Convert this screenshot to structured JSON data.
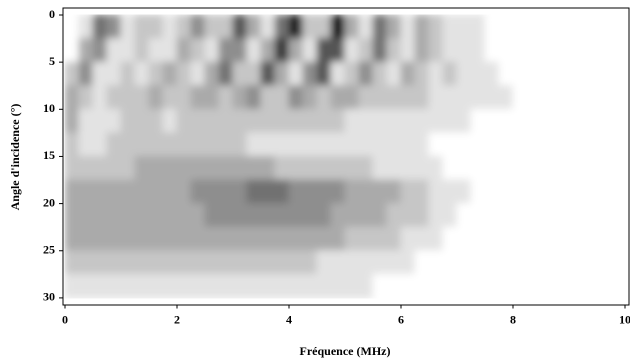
{
  "chart_data": {
    "type": "heatmap",
    "xlabel": "Fréquence (MHz)",
    "ylabel": "Angle d'incidence (°)",
    "xlim": [
      0,
      10
    ],
    "ylim": [
      30.7,
      -0.7
    ],
    "xticks": [
      0,
      2,
      4,
      6,
      8,
      10
    ],
    "yticks": [
      0,
      5,
      10,
      15,
      20,
      25,
      30
    ],
    "zlim": [
      0,
      9
    ],
    "colors": [
      "#ffffff",
      "#000000"
    ],
    "x": [
      0.125,
      0.375,
      0.625,
      0.875,
      1.125,
      1.375,
      1.625,
      1.875,
      2.125,
      2.375,
      2.625,
      2.875,
      3.125,
      3.375,
      3.625,
      3.875,
      4.125,
      4.375,
      4.625,
      4.875,
      5.125,
      5.375,
      5.625,
      5.875,
      6.125,
      6.375,
      6.625,
      6.875,
      7.125,
      7.375,
      7.625,
      7.875,
      8.125,
      8.375,
      8.625,
      8.875,
      9.125,
      9.375,
      9.625,
      9.875
    ],
    "y": [
      1.25,
      3.75,
      6.25,
      8.75,
      11.25,
      13.75,
      16.25,
      18.75,
      21.25,
      23.75,
      26.25,
      28.75
    ],
    "z": [
      [
        0,
        1,
        5,
        4,
        1,
        2,
        2,
        1,
        2,
        4,
        2,
        2,
        6,
        3,
        1,
        5,
        8,
        2,
        2,
        9,
        3,
        1,
        5,
        3,
        1,
        3,
        2,
        1,
        1,
        1,
        0,
        0,
        0,
        0,
        0,
        0,
        0,
        0,
        0,
        0
      ],
      [
        0,
        3,
        4,
        1,
        1,
        2,
        1,
        1,
        3,
        2,
        1,
        4,
        4,
        1,
        3,
        7,
        3,
        1,
        6,
        6,
        1,
        2,
        5,
        2,
        1,
        3,
        2,
        1,
        1,
        1,
        0,
        0,
        0,
        0,
        0,
        0,
        0,
        0,
        0,
        0
      ],
      [
        2,
        4,
        1,
        1,
        2,
        1,
        2,
        3,
        2,
        1,
        3,
        5,
        2,
        2,
        6,
        3,
        1,
        4,
        6,
        1,
        2,
        4,
        2,
        1,
        3,
        2,
        1,
        2,
        1,
        1,
        1,
        0,
        0,
        0,
        0,
        0,
        0,
        0,
        0,
        0
      ],
      [
        3,
        2,
        1,
        2,
        2,
        2,
        3,
        2,
        2,
        3,
        3,
        2,
        3,
        4,
        2,
        2,
        4,
        3,
        2,
        3,
        3,
        2,
        2,
        2,
        2,
        2,
        1,
        1,
        1,
        1,
        1,
        1,
        0,
        0,
        0,
        0,
        0,
        0,
        0,
        0
      ],
      [
        3,
        1,
        1,
        1,
        2,
        2,
        2,
        1,
        2,
        2,
        2,
        2,
        2,
        2,
        2,
        2,
        2,
        2,
        2,
        2,
        1,
        1,
        1,
        1,
        1,
        1,
        1,
        1,
        1,
        0,
        0,
        0,
        0,
        0,
        0,
        0,
        0,
        0,
        0,
        0
      ],
      [
        2,
        1,
        1,
        2,
        2,
        2,
        2,
        2,
        2,
        2,
        2,
        2,
        2,
        1,
        1,
        1,
        1,
        1,
        1,
        1,
        1,
        1,
        1,
        1,
        1,
        1,
        0,
        0,
        0,
        0,
        0,
        0,
        0,
        0,
        0,
        0,
        0,
        0,
        0,
        0
      ],
      [
        2,
        2,
        2,
        2,
        2,
        3,
        3,
        3,
        3,
        3,
        3,
        3,
        3,
        3,
        3,
        2,
        2,
        2,
        2,
        2,
        2,
        2,
        1,
        1,
        1,
        1,
        1,
        0,
        0,
        0,
        0,
        0,
        0,
        0,
        0,
        0,
        0,
        0,
        0,
        0
      ],
      [
        3,
        3,
        3,
        3,
        3,
        3,
        3,
        3,
        3,
        4,
        4,
        4,
        4,
        5,
        5,
        5,
        4,
        4,
        4,
        4,
        3,
        3,
        3,
        3,
        2,
        2,
        1,
        1,
        1,
        0,
        0,
        0,
        0,
        0,
        0,
        0,
        0,
        0,
        0,
        0
      ],
      [
        3,
        3,
        3,
        3,
        3,
        3,
        3,
        3,
        3,
        3,
        4,
        4,
        4,
        4,
        4,
        4,
        4,
        4,
        4,
        3,
        3,
        3,
        3,
        2,
        2,
        2,
        1,
        1,
        0,
        0,
        0,
        0,
        0,
        0,
        0,
        0,
        0,
        0,
        0,
        0
      ],
      [
        3,
        3,
        3,
        3,
        3,
        3,
        3,
        3,
        3,
        3,
        3,
        3,
        3,
        3,
        3,
        3,
        3,
        3,
        3,
        3,
        2,
        2,
        2,
        2,
        1,
        1,
        1,
        0,
        0,
        0,
        0,
        0,
        0,
        0,
        0,
        0,
        0,
        0,
        0,
        0
      ],
      [
        2,
        2,
        2,
        2,
        2,
        2,
        2,
        2,
        2,
        2,
        2,
        2,
        2,
        2,
        2,
        2,
        2,
        2,
        1,
        1,
        1,
        1,
        1,
        1,
        1,
        0,
        0,
        0,
        0,
        0,
        0,
        0,
        0,
        0,
        0,
        0,
        0,
        0,
        0,
        0
      ],
      [
        1,
        1,
        1,
        1,
        1,
        1,
        1,
        1,
        1,
        1,
        1,
        1,
        1,
        1,
        1,
        1,
        1,
        1,
        1,
        1,
        1,
        1,
        0,
        0,
        0,
        0,
        0,
        0,
        0,
        0,
        0,
        0,
        0,
        0,
        0,
        0,
        0,
        0,
        0,
        0
      ]
    ]
  }
}
